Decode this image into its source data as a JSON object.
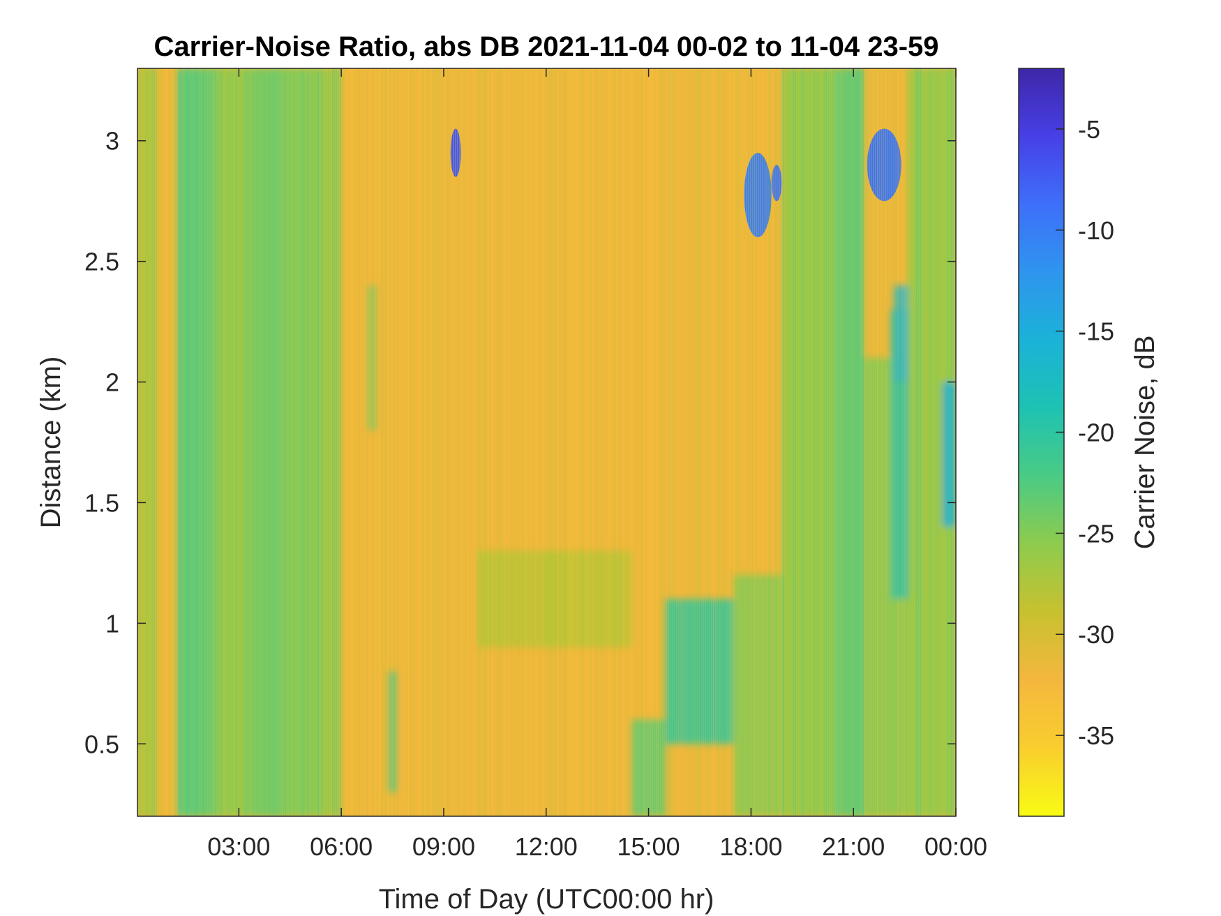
{
  "chart_data": {
    "type": "heatmap",
    "title": "Carrier-Noise Ratio, abs DB 2021-11-04 00-02 to 11-04 23-59",
    "xlabel": "Time of Day (UTC00:00 hr)",
    "ylabel": "Distance (km)",
    "colorbar_label": "Carrier Noise, dB",
    "x_unit": "hour of day (UTC)",
    "xlim": [
      0.03,
      24.0
    ],
    "ylim": [
      0.2,
      3.3
    ],
    "clim": [
      -39,
      -2
    ],
    "xticks": [
      {
        "value": 3,
        "label": "03:00"
      },
      {
        "value": 6,
        "label": "06:00"
      },
      {
        "value": 9,
        "label": "09:00"
      },
      {
        "value": 12,
        "label": "12:00"
      },
      {
        "value": 15,
        "label": "15:00"
      },
      {
        "value": 18,
        "label": "18:00"
      },
      {
        "value": 21,
        "label": "21:00"
      },
      {
        "value": 24,
        "label": "00:00"
      }
    ],
    "yticks": [
      {
        "value": 0.5,
        "label": "0.5"
      },
      {
        "value": 1.0,
        "label": "1"
      },
      {
        "value": 1.5,
        "label": "1.5"
      },
      {
        "value": 2.0,
        "label": "2"
      },
      {
        "value": 2.5,
        "label": "2.5"
      },
      {
        "value": 3.0,
        "label": "3"
      }
    ],
    "cticks": [
      {
        "value": -5,
        "label": "-5"
      },
      {
        "value": -10,
        "label": "-10"
      },
      {
        "value": -15,
        "label": "-15"
      },
      {
        "value": -20,
        "label": "-20"
      },
      {
        "value": -25,
        "label": "-25"
      },
      {
        "value": -30,
        "label": "-30"
      },
      {
        "value": -35,
        "label": "-35"
      }
    ],
    "colormap": [
      "#3e26a8",
      "#4740e6",
      "#3e6ffa",
      "#2e95ee",
      "#1bb2d8",
      "#1ec2b2",
      "#4acb84",
      "#8ecb4d",
      "#c8c12f",
      "#f4b73e",
      "#f9ce2e",
      "#f9fb14"
    ],
    "background_value": -32,
    "regions": [
      {
        "t0": 0.03,
        "t1": 0.6,
        "r0": 0.2,
        "r1": 3.3,
        "value": -28
      },
      {
        "t0": 1.2,
        "t1": 1.35,
        "r0": 0.2,
        "r1": 3.3,
        "value": -22
      },
      {
        "t0": 1.35,
        "t1": 2.3,
        "r0": 0.2,
        "r1": 3.3,
        "value": -23
      },
      {
        "t0": 2.3,
        "t1": 3.3,
        "r0": 0.2,
        "r1": 3.3,
        "value": -26
      },
      {
        "t0": 3.3,
        "t1": 4.2,
        "r0": 0.2,
        "r1": 3.3,
        "value": -24
      },
      {
        "t0": 4.2,
        "t1": 5.5,
        "r0": 0.2,
        "r1": 3.3,
        "value": -25
      },
      {
        "t0": 5.5,
        "t1": 6.0,
        "r0": 0.2,
        "r1": 3.3,
        "value": -27
      },
      {
        "t0": 6.8,
        "t1": 7.0,
        "r0": 1.8,
        "r1": 2.4,
        "value": -24
      },
      {
        "t0": 7.4,
        "t1": 7.6,
        "r0": 0.3,
        "r1": 0.8,
        "value": -21
      },
      {
        "t0": 10.0,
        "t1": 14.5,
        "r0": 0.9,
        "r1": 1.3,
        "value": -28
      },
      {
        "t0": 14.5,
        "t1": 15.5,
        "r0": 0.2,
        "r1": 0.6,
        "value": -23
      },
      {
        "t0": 15.5,
        "t1": 17.5,
        "r0": 0.5,
        "r1": 1.1,
        "value": -20
      },
      {
        "t0": 17.5,
        "t1": 18.9,
        "r0": 0.2,
        "r1": 1.2,
        "value": -25
      },
      {
        "t0": 18.9,
        "t1": 20.5,
        "r0": 0.2,
        "r1": 3.3,
        "value": -26
      },
      {
        "t0": 20.5,
        "t1": 21.3,
        "r0": 0.2,
        "r1": 3.3,
        "value": -23
      },
      {
        "t0": 21.3,
        "t1": 22.6,
        "r0": 0.2,
        "r1": 2.1,
        "value": -25
      },
      {
        "t0": 22.1,
        "t1": 22.7,
        "r0": 1.1,
        "r1": 2.3,
        "value": -19
      },
      {
        "t0": 22.6,
        "t1": 24.0,
        "r0": 0.2,
        "r1": 3.3,
        "value": -26
      },
      {
        "t0": 23.6,
        "t1": 24.0,
        "r0": 1.4,
        "r1": 2.0,
        "value": -15
      },
      {
        "t0": 22.2,
        "t1": 22.6,
        "r0": 2.0,
        "r1": 2.4,
        "value": -16
      }
    ],
    "cloud_features": [
      {
        "t0": 9.2,
        "t1": 9.5,
        "r0": 2.85,
        "r1": 3.05,
        "value": -7
      },
      {
        "t0": 17.8,
        "t1": 18.6,
        "r0": 2.6,
        "r1": 2.95,
        "value": -10
      },
      {
        "t0": 18.6,
        "t1": 18.9,
        "r0": 2.75,
        "r1": 2.9,
        "value": -9
      },
      {
        "t0": 21.4,
        "t1": 22.4,
        "r0": 2.75,
        "r1": 3.05,
        "value": -9
      }
    ]
  }
}
